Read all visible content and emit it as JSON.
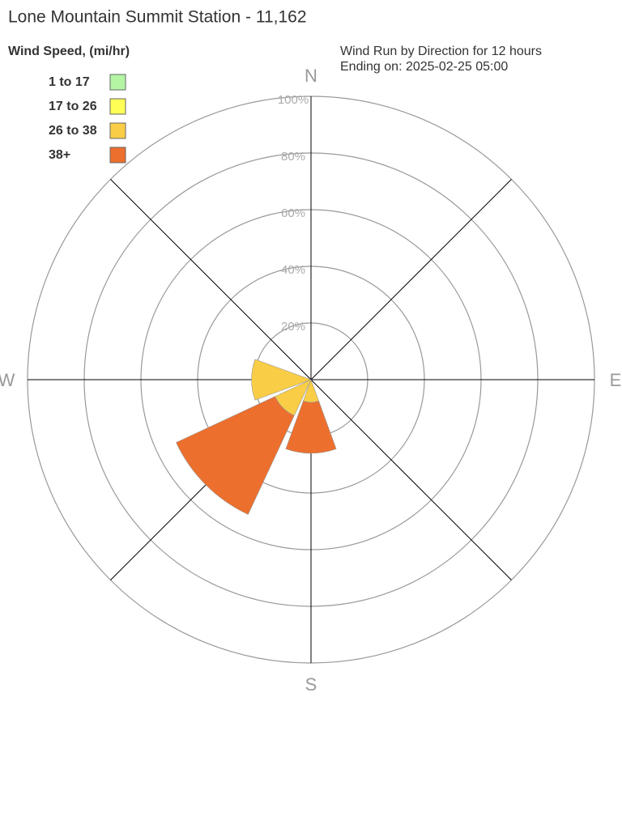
{
  "chart_data": {
    "type": "wind-rose",
    "title": "Lone Mountain Summit Station - 11,162",
    "legend_title": "Wind Speed, (mi/hr)",
    "subtitle": [
      "Wind Run by Direction for 12 hours",
      "Ending on: 2025-02-25 05:00"
    ],
    "categories": [
      "N",
      null,
      "E",
      null,
      "S",
      null,
      "W",
      null
    ],
    "series": [
      {
        "name": "1 to 17",
        "color": "#b3f5a3",
        "values": [
          0,
          0,
          0,
          0,
          0,
          0,
          0,
          0
        ]
      },
      {
        "name": "17 to 26",
        "color": "#ffff55",
        "values": [
          0,
          0,
          0,
          0,
          0,
          0,
          0,
          0
        ]
      },
      {
        "name": "26 to 38",
        "color": "#f9cd45",
        "values": [
          0,
          0,
          0,
          0,
          8,
          14,
          21,
          0
        ]
      },
      {
        "name": "38+",
        "color": "#ec6f2d",
        "values": [
          0,
          0,
          0,
          0,
          18,
          38.5,
          0,
          0
        ]
      }
    ],
    "rlim": [
      0,
      100
    ],
    "rticks": [
      {
        "value": 20,
        "label": "20%"
      },
      {
        "value": 40,
        "label": "40%"
      },
      {
        "value": 60,
        "label": "60%"
      },
      {
        "value": 80,
        "label": "80%"
      },
      {
        "value": 100,
        "label": "100%"
      }
    ]
  }
}
